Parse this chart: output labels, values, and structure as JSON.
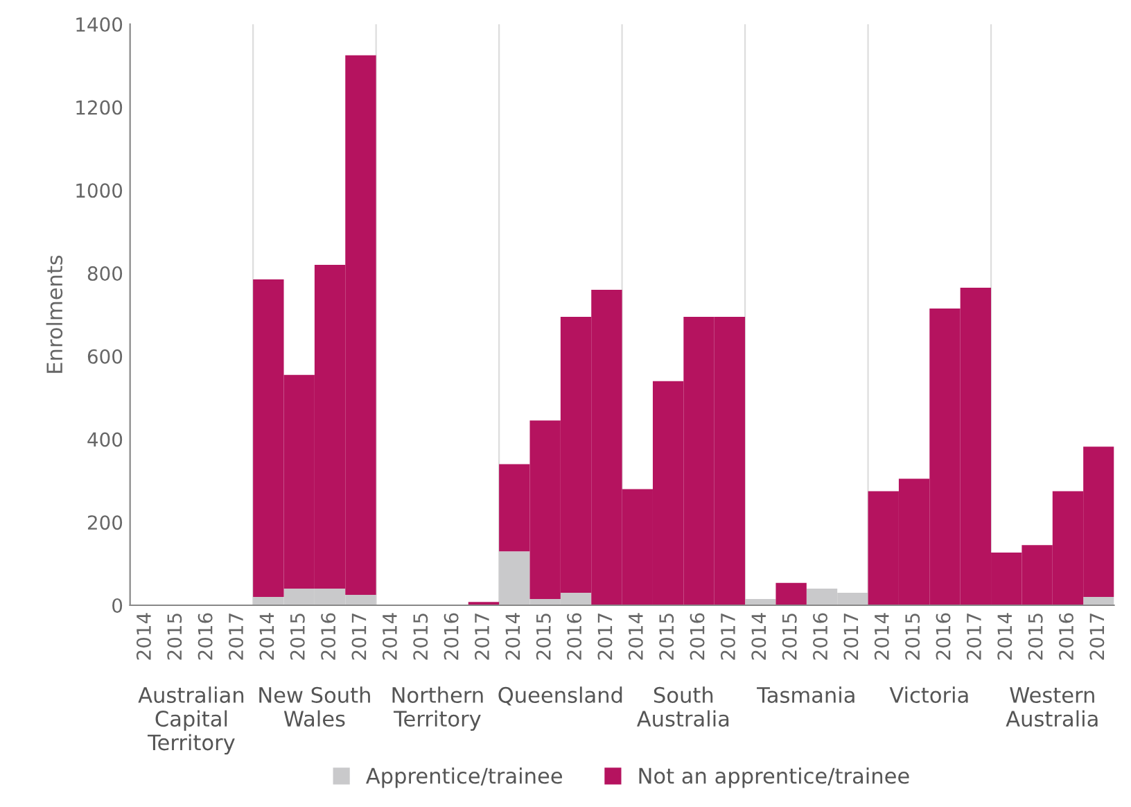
{
  "chart_data": {
    "type": "bar",
    "stacked": true,
    "ylabel": "Enrolments",
    "categories": [
      "2014",
      "2015",
      "2016",
      "2017",
      "2014",
      "2015",
      "2016",
      "2017",
      "2014",
      "2015",
      "2016",
      "2017",
      "2014",
      "2015",
      "2016",
      "2017",
      "2014",
      "2015",
      "2016",
      "2017",
      "2014",
      "2015",
      "2016",
      "2017",
      "2014",
      "2015",
      "2016",
      "2017",
      "2014",
      "2015",
      "2016",
      "2017"
    ],
    "annotations": [
      "Australian Capital Territory",
      "New South Wales",
      "Northern Territory",
      "Queensland",
      "South Australia",
      "Tasmania",
      "Victoria",
      "Western Australia"
    ],
    "series": [
      {
        "name": "Apprentice/trainee",
        "color": "#c9c9cb",
        "values": [
          0,
          0,
          0,
          0,
          20,
          40,
          40,
          25,
          0,
          0,
          0,
          0,
          130,
          15,
          30,
          null,
          0,
          0,
          0,
          0,
          15,
          0,
          40,
          30,
          0,
          0,
          null,
          null,
          0,
          null,
          0,
          20
        ]
      },
      {
        "name": "Not an apprentice/trainee",
        "color": "#b5135f",
        "values": [
          0,
          0,
          0,
          0,
          765,
          515,
          780,
          1300,
          0,
          0,
          0,
          8,
          210,
          430,
          665,
          760,
          280,
          540,
          695,
          695,
          0,
          54,
          0,
          0,
          275,
          305,
          715,
          765,
          127,
          145,
          275,
          362
        ]
      }
    ],
    "ylim": [
      0,
      1400
    ],
    "yticks": [
      0,
      200,
      400,
      600,
      800,
      1000,
      1200,
      1400
    ],
    "grid": false,
    "legend": "bottom"
  }
}
